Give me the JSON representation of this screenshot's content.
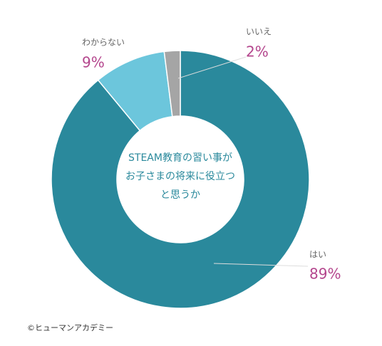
{
  "chart_data": {
    "type": "donut",
    "center_text": [
      "STEAM教育の習い事が",
      "お子さまの将来に役立つ",
      "と思うか"
    ],
    "categories": [
      "はい",
      "わからない",
      "いいえ"
    ],
    "values": [
      89,
      9,
      2
    ],
    "value_labels": [
      "89%",
      "9%",
      "2%"
    ],
    "colors": [
      "#2a899c",
      "#6cc6dc",
      "#a5a5a5"
    ],
    "source": "©ヒューマンアカデミー"
  }
}
